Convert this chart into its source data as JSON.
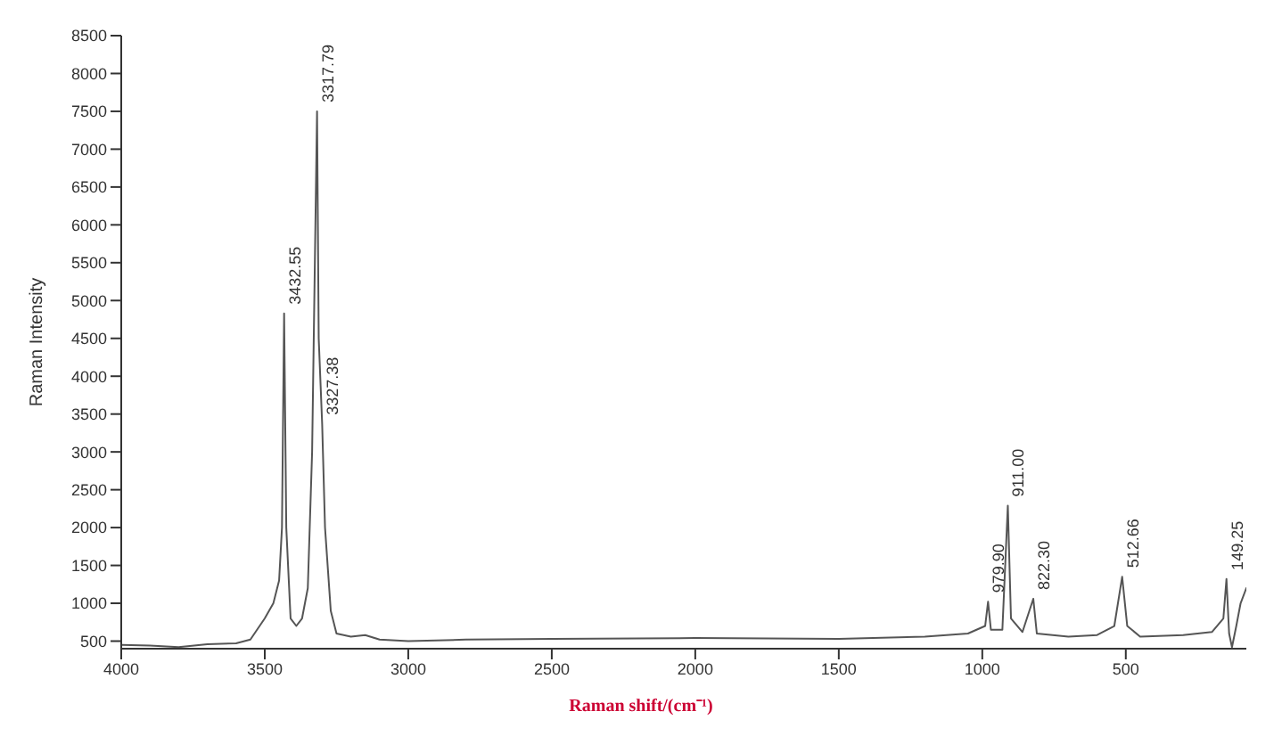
{
  "chart_data": {
    "type": "line",
    "xlabel": "Raman shift/(cm⁻¹)",
    "ylabel": "Raman Intensity",
    "xlim": [
      4000,
      80
    ],
    "xticks": [
      4000,
      3500,
      3000,
      2500,
      2000,
      1500,
      1000,
      500
    ],
    "ylim": [
      400,
      8500
    ],
    "yticks": [
      500,
      1000,
      1500,
      2000,
      2500,
      3000,
      3500,
      4000,
      4500,
      5000,
      5500,
      6000,
      6500,
      7000,
      7500,
      8000,
      8500
    ],
    "marker": "none",
    "line_style": "solid",
    "series": [
      {
        "color": "#555555",
        "x": [
          4000,
          3900,
          3800,
          3700,
          3600,
          3550,
          3500,
          3470,
          3450,
          3440,
          3432.55,
          3425,
          3410,
          3390,
          3370,
          3350,
          3335,
          3317.79,
          3312,
          3300,
          3290,
          3270,
          3250,
          3200,
          3150,
          3100,
          3000,
          2800,
          2500,
          2000,
          1500,
          1200,
          1050,
          990,
          979.9,
          970,
          930,
          911,
          900,
          860,
          822.3,
          810,
          700,
          600,
          540,
          512.66,
          495,
          450,
          300,
          200,
          160,
          149.25,
          140,
          130,
          115,
          100,
          80
        ],
        "values": [
          450,
          440,
          420,
          460,
          470,
          520,
          800,
          1000,
          1300,
          2000,
          4830,
          2000,
          800,
          700,
          800,
          1200,
          3000,
          7500,
          4500,
          3370,
          2000,
          900,
          600,
          560,
          580,
          520,
          500,
          520,
          530,
          540,
          530,
          560,
          600,
          700,
          1020,
          650,
          650,
          2290,
          800,
          620,
          1060,
          600,
          560,
          580,
          700,
          1350,
          700,
          560,
          580,
          620,
          800,
          1320,
          600,
          420,
          700,
          1000,
          1200
        ]
      }
    ],
    "annotations": [
      {
        "text": "3432.55",
        "x": 3432.55,
        "y": 4830
      },
      {
        "text": "3317.79",
        "x": 3317.79,
        "y": 7500
      },
      {
        "text": "3327.38",
        "x": 3300,
        "y": 3370
      },
      {
        "text": "979.90",
        "x": 979.9,
        "y": 1020
      },
      {
        "text": "911.00",
        "x": 911,
        "y": 2290
      },
      {
        "text": "822.30",
        "x": 822.3,
        "y": 1060
      },
      {
        "text": "512.66",
        "x": 512.66,
        "y": 1350
      },
      {
        "text": "149.25",
        "x": 149.25,
        "y": 1320
      }
    ]
  }
}
